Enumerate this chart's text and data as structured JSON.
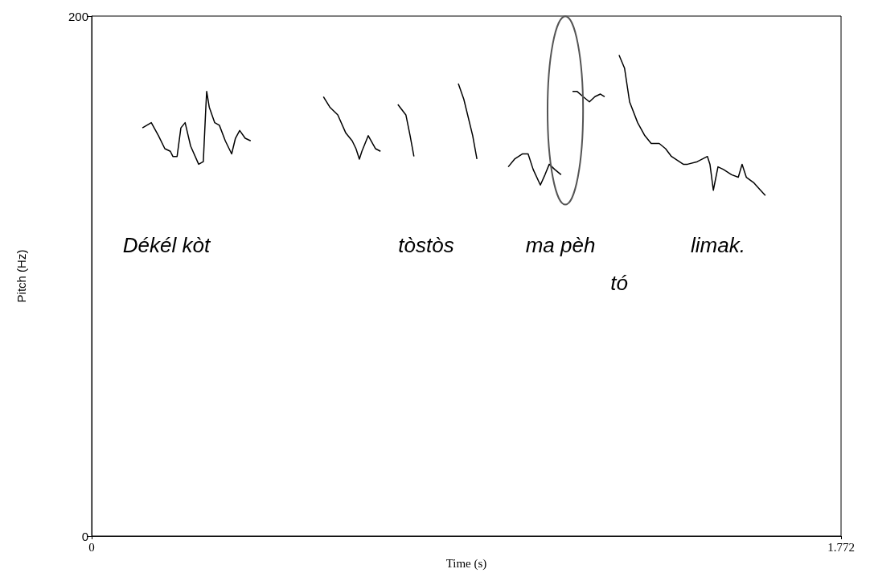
{
  "chart_data": {
    "type": "line",
    "xlabel": "Time (s)",
    "ylabel": "Pitch (Hz)",
    "xlim": [
      0,
      1.772
    ],
    "xticks": [
      0,
      1.772
    ],
    "ylim": [
      0,
      200
    ],
    "yticks": [
      0,
      200
    ],
    "grid": false,
    "marker": "none",
    "line_style": "solid",
    "series": [
      {
        "color": "#000000",
        "x": [
          0.12,
          0.141,
          0.158,
          0.173,
          0.186,
          0.192,
          0.202,
          0.211,
          0.221,
          0.234,
          0.253,
          0.264,
          0.266,
          0.27,
          0.272,
          0.278,
          0.291,
          0.302,
          0.316,
          0.331,
          0.34,
          0.35,
          0.363,
          0.376
        ],
        "values": [
          157,
          159,
          154,
          149,
          148,
          146,
          146,
          157,
          159,
          150,
          143,
          144,
          151,
          165,
          171,
          165,
          159,
          158,
          152,
          147,
          153,
          156,
          153,
          152
        ]
      },
      {
        "color": "#000000",
        "x": [
          0.548,
          0.563,
          0.582,
          0.601,
          0.616,
          0.625,
          0.633,
          0.639,
          0.654,
          0.671,
          0.683
        ],
        "values": [
          169,
          165,
          162,
          155,
          152,
          149,
          145,
          148,
          154,
          149,
          148
        ]
      },
      {
        "color": "#000000",
        "x": [
          0.724,
          0.743,
          0.753,
          0.762
        ],
        "values": [
          166,
          162,
          154,
          146
        ]
      },
      {
        "color": "#000000",
        "x": [
          0.867,
          0.88,
          0.901,
          0.911
        ],
        "values": [
          174,
          168,
          154,
          145
        ]
      },
      {
        "color": "#000000",
        "x": [
          0.985,
          1.0,
          1.019,
          1.032,
          1.044,
          1.061,
          1.072,
          1.082,
          1.095,
          1.11
        ],
        "values": [
          142,
          145,
          147,
          147,
          141,
          135,
          139,
          143,
          141,
          139
        ]
      },
      {
        "color": "#000000",
        "x": [
          1.137,
          1.148,
          1.162,
          1.177,
          1.19,
          1.203,
          1.213
        ],
        "values": [
          171,
          171,
          169,
          167,
          169,
          170,
          169
        ]
      },
      {
        "color": "#000000",
        "x": [
          1.247,
          1.26,
          1.272,
          1.291,
          1.308,
          1.323,
          1.342,
          1.357,
          1.371,
          1.399,
          1.409,
          1.432,
          1.456,
          1.462,
          1.47,
          1.481,
          1.494,
          1.513,
          1.529,
          1.538,
          1.548,
          1.565,
          1.576,
          1.593
        ],
        "values": [
          185,
          180,
          167,
          159,
          154,
          151,
          151,
          149,
          146,
          143,
          143,
          144,
          146,
          143,
          133,
          142,
          141,
          139,
          138,
          143,
          138,
          136,
          134,
          131
        ]
      }
    ],
    "annotations": [
      "Dékél kòt",
      "tòstòs",
      "ma pèh",
      "tó",
      "limak."
    ]
  }
}
